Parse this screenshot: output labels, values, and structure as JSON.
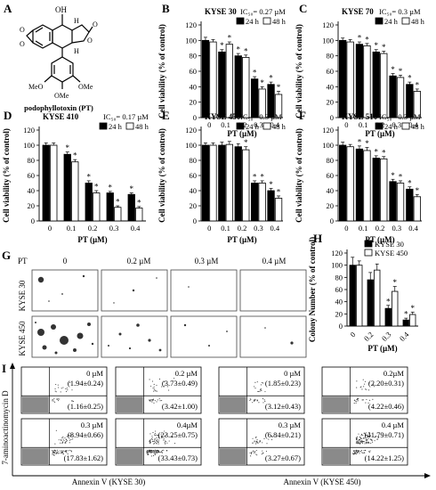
{
  "colors": {
    "filled": "#000000",
    "open": "#ffffff",
    "flow_gate": "#8a8a8a"
  },
  "structure": {
    "panel_letter": "A",
    "label": "podophyllotoxin (PT)",
    "atoms": {
      "oh": "OH",
      "h1": "H",
      "h2": "H",
      "o_ring1": "O",
      "o_ring2": "O",
      "o_lac1": "O",
      "o_lac2": "O",
      "ome1": "MeO",
      "ome2": "OMe",
      "ome3": "OMe"
    }
  },
  "viability": {
    "ylabel": "Cell viability (% of control)",
    "xlabel": "PT (µM)",
    "yticks": [
      "0",
      "20",
      "40",
      "60",
      "80",
      "100",
      "120"
    ],
    "legend": [
      "24 h",
      "48 h"
    ]
  },
  "colony": {
    "ylabel": "Colony Number (% of control)",
    "xlabel": "PT (µM)",
    "yticks": [
      "0",
      "20",
      "40",
      "60",
      "80",
      "100",
      "120"
    ]
  },
  "softagar": {
    "panel_letter": "G",
    "pt_label": "PT",
    "columns": [
      "0",
      "0.2 µM",
      "0.3 µM",
      "0.4 µM"
    ],
    "rows": [
      "KYSE 30",
      "KYSE 450"
    ]
  },
  "flow": {
    "panel_letter": "I",
    "ylabel": "7-aminoactinomycin D",
    "groups": [
      {
        "xlabel": "Annexin V (KYSE 30)",
        "panels": [
          {
            "dose": "0 µM",
            "ur": "(1.94±0.24)",
            "lr": "(1.16±0.25)"
          },
          {
            "dose": "0.2 µM",
            "ur": "(3.73±0.49)",
            "lr": "(3.42±1.00)"
          },
          {
            "dose": "0.3 µM",
            "ur": "(8.94±0.66)",
            "lr": "(17.83±1.62)"
          },
          {
            "dose": "0.4µM",
            "ur": "(23.25±0.75)",
            "lr": "(33.43±0.73)"
          }
        ]
      },
      {
        "xlabel": "Annexin V (KYSE 450)",
        "panels": [
          {
            "dose": "0 µM",
            "ur": "(1.85±0.23)",
            "lr": "(3.12±0.43)"
          },
          {
            "dose": "0.2µM",
            "ur": "(2.20±0.31)",
            "lr": "(4.22±0.46)"
          },
          {
            "dose": "0.3 µM",
            "ur": "(6.84±0.21)",
            "lr": "(3.27±0.67)"
          },
          {
            "dose": "0.4 µM",
            "ur": "(41.79±0.71)",
            "lr": "(14.22±1.25)"
          }
        ]
      }
    ]
  },
  "chart_data": [
    {
      "panel": "B",
      "type": "bar",
      "title": "KYSE 30",
      "ic50": "IC₅₀= 0.27 µM",
      "categories": [
        "0",
        "0.1",
        "0.2",
        "0.3",
        "0.4"
      ],
      "ylim": [
        0,
        120
      ],
      "series": [
        {
          "name": "24 h",
          "values": [
            100,
            85,
            80,
            50,
            43
          ]
        },
        {
          "name": "48 h",
          "values": [
            98,
            95,
            78,
            37,
            30
          ]
        }
      ],
      "errors": [
        [
          4,
          3,
          3,
          3,
          3
        ],
        [
          3,
          3,
          3,
          3,
          4
        ]
      ],
      "stars": [
        [
          false,
          true,
          true,
          true,
          true
        ],
        [
          false,
          true,
          true,
          true,
          true
        ]
      ]
    },
    {
      "panel": "C",
      "type": "bar",
      "title": "KYSE 70",
      "ic50": "IC₅₀= 0.3 µM",
      "categories": [
        "0",
        "0.1",
        "0.2",
        "0.3",
        "0.4"
      ],
      "ylim": [
        0,
        120
      ],
      "series": [
        {
          "name": "24 h",
          "values": [
            100,
            95,
            85,
            54,
            43
          ]
        },
        {
          "name": "48 h",
          "values": [
            98,
            93,
            83,
            52,
            34
          ]
        }
      ],
      "errors": [
        [
          3,
          3,
          3,
          3,
          3
        ],
        [
          3,
          3,
          3,
          3,
          3
        ]
      ],
      "stars": [
        [
          false,
          true,
          true,
          true,
          true
        ],
        [
          false,
          true,
          true,
          true,
          true
        ]
      ]
    },
    {
      "panel": "D",
      "type": "bar",
      "title": "KYSE 410",
      "ic50": "IC₅₀= 0.17 µM",
      "categories": [
        "0",
        "0.1",
        "0.2",
        "0.3",
        "0.4"
      ],
      "ylim": [
        0,
        120
      ],
      "series": [
        {
          "name": "24 h",
          "values": [
            100,
            88,
            50,
            37,
            35
          ]
        },
        {
          "name": "48 h",
          "values": [
            100,
            78,
            37,
            18,
            17
          ]
        }
      ],
      "errors": [
        [
          3,
          3,
          3,
          2,
          2
        ],
        [
          3,
          3,
          3,
          2,
          2
        ]
      ],
      "stars": [
        [
          false,
          true,
          true,
          true,
          true
        ],
        [
          false,
          true,
          true,
          true,
          true
        ]
      ]
    },
    {
      "panel": "E",
      "type": "bar",
      "title": "KYSE 450",
      "ic50": "IC₅₀= 0.3 µM",
      "categories": [
        "0",
        "0.1",
        "0.2",
        "0.3",
        "0.4"
      ],
      "ylim": [
        0,
        120
      ],
      "series": [
        {
          "name": "24 h",
          "values": [
            100,
            100,
            98,
            50,
            40
          ]
        },
        {
          "name": "48 h",
          "values": [
            100,
            101,
            94,
            50,
            30
          ]
        }
      ],
      "errors": [
        [
          3,
          4,
          4,
          3,
          3
        ],
        [
          3,
          4,
          4,
          3,
          3
        ]
      ],
      "stars": [
        [
          false,
          false,
          false,
          true,
          true
        ],
        [
          false,
          false,
          true,
          true,
          true
        ]
      ]
    },
    {
      "panel": "F",
      "type": "bar",
      "title": "KYSE 510",
      "ic50": "IC₅₀= 0.3 µM",
      "categories": [
        "0",
        "0.1",
        "0.2",
        "0.3",
        "0.4"
      ],
      "ylim": [
        0,
        120
      ],
      "series": [
        {
          "name": "24 h",
          "values": [
            100,
            95,
            83,
            52,
            42
          ]
        },
        {
          "name": "48 h",
          "values": [
            98,
            93,
            82,
            50,
            32
          ]
        }
      ],
      "errors": [
        [
          4,
          4,
          3,
          3,
          3
        ],
        [
          3,
          4,
          3,
          3,
          3
        ]
      ],
      "stars": [
        [
          false,
          true,
          true,
          true,
          true
        ],
        [
          false,
          true,
          true,
          true,
          true
        ]
      ]
    },
    {
      "panel": "H",
      "type": "bar",
      "title": "",
      "categories": [
        "0",
        "0.2",
        "0.3",
        "0.4"
      ],
      "ylim": [
        0,
        120
      ],
      "series": [
        {
          "name": "KYSE 30",
          "values": [
            100,
            76,
            29,
            10
          ]
        },
        {
          "name": "KYSE 450",
          "values": [
            100,
            92,
            57,
            19
          ]
        }
      ],
      "errors": [
        [
          13,
          12,
          5,
          3
        ],
        [
          7,
          10,
          8,
          4
        ]
      ],
      "stars": [
        [
          false,
          false,
          true,
          true
        ],
        [
          false,
          false,
          true,
          true
        ]
      ]
    }
  ]
}
